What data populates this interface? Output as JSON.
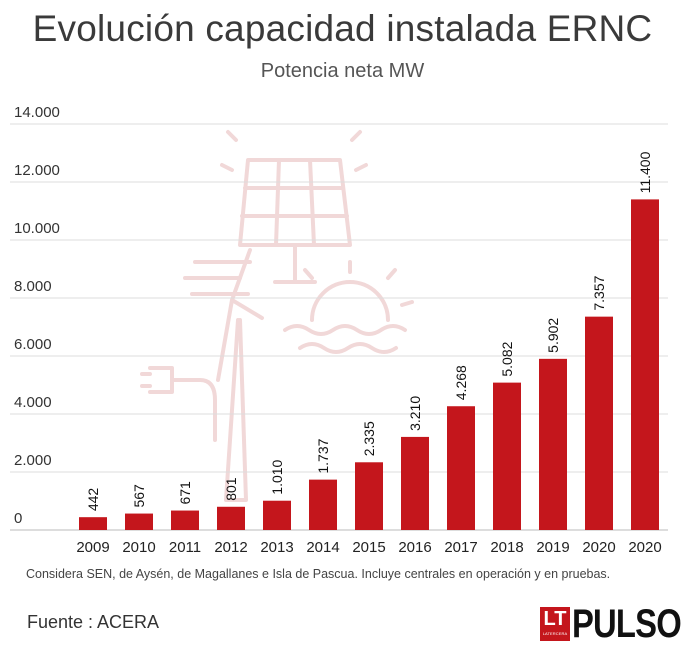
{
  "header": {
    "title": "Evolución capacidad instalada ERNC",
    "subtitle": "Potencia neta MW"
  },
  "chart_data": {
    "type": "bar",
    "categories": [
      "2009",
      "2010",
      "2011",
      "2012",
      "2013",
      "2014",
      "2015",
      "2016",
      "2017",
      "2018",
      "2019",
      "2020",
      "2020"
    ],
    "values": [
      442,
      567,
      671,
      801,
      1010,
      1737,
      2335,
      3210,
      4268,
      5082,
      5902,
      7357,
      11400
    ],
    "value_labels": [
      "442",
      "567",
      "671",
      "801",
      "1.010",
      "1.737",
      "2.335",
      "3.210",
      "4.268",
      "5.082",
      "5.902",
      "7.357",
      "11.400"
    ],
    "y_ticks": [
      0,
      2000,
      4000,
      6000,
      8000,
      10000,
      12000,
      14000
    ],
    "y_tick_labels": [
      "0",
      "2.000",
      "4.000",
      "6.000",
      "8.000",
      "10.000",
      "12.000",
      "14.000"
    ],
    "ylim": [
      0,
      14000
    ],
    "grid": true,
    "bar_color": "#c4161c"
  },
  "footer": {
    "note": "Considera SEN, de Aysén, de Magallanes e Isla de Pascua. Incluye centrales en operación y en pruebas.",
    "source": "Fuente : ACERA"
  },
  "logo": {
    "mark": "LT",
    "mark_sub": "LATERCERA",
    "brand": "PULSO"
  },
  "icons": {
    "background": "solar-wind-energy-icon"
  }
}
